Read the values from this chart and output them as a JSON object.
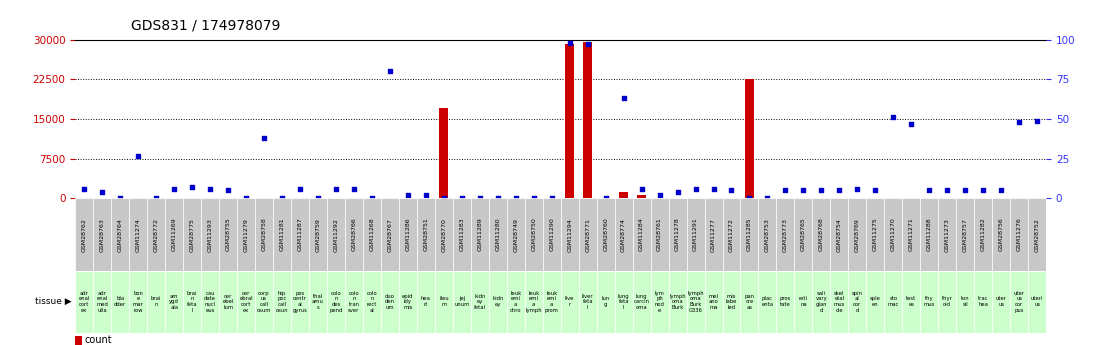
{
  "title": "GDS831 / 174978079",
  "left_ylabel_color": "#cc0000",
  "right_ylabel_color": "#3333ff",
  "ylim_left": [
    0,
    30000
  ],
  "ylim_right": [
    0,
    100
  ],
  "left_ticks": [
    0,
    7500,
    15000,
    22500,
    30000
  ],
  "right_ticks": [
    0,
    25,
    50,
    75,
    100
  ],
  "samples": [
    "GSM28762",
    "GSM28763",
    "GSM28764",
    "GSM11274",
    "GSM28772",
    "GSM11269",
    "GSM28775",
    "GSM11293",
    "GSM28755",
    "GSM11279",
    "GSM28758",
    "GSM11281",
    "GSM11287",
    "GSM28759",
    "GSM11292",
    "GSM28766",
    "GSM11268",
    "GSM28767",
    "GSM11286",
    "GSM28751",
    "GSM28770",
    "GSM11283",
    "GSM11289",
    "GSM11280",
    "GSM28749",
    "GSM28750",
    "GSM11290",
    "GSM11294",
    "GSM28771",
    "GSM28760",
    "GSM28774",
    "GSM11284",
    "GSM28761",
    "GSM11278",
    "GSM11291",
    "GSM11277",
    "GSM11272",
    "GSM11285",
    "GSM28753",
    "GSM28773",
    "GSM28765",
    "GSM28768",
    "GSM28754",
    "GSM28769",
    "GSM11275",
    "GSM11270",
    "GSM11271",
    "GSM11288",
    "GSM11273",
    "GSM28757",
    "GSM11282",
    "GSM28756",
    "GSM11276",
    "GSM28752"
  ],
  "tissues": [
    "adr\nenal\ncort\nex",
    "adr\nenal\nmed\nulla",
    "bla\ndder",
    "bon\ne\nmar\nrow",
    "brai\nn",
    "am\nygd\nala",
    "brai\nn\nfeta\nl",
    "cau\ndate\nnucl\neus",
    "cer\nebel\nlum",
    "cer\nebral\ncort\nex",
    "corp\nus\ncall\nosum",
    "hip\npoc\ncall\nosun",
    "pos\ncentr\nal\ngyrus",
    "thal\namu\ns",
    "colo\nn\ndes\npend",
    "colo\nn\ntran\nsver",
    "colo\nn\nrect\nal",
    "duo\nden\num",
    "epid\nidy\nmis",
    "hea\nrt",
    "ileu\nm",
    "jej\nunum",
    "kidn\ney\nfetal",
    "kidn\ney",
    "leuk\nemi\na\nchro",
    "leuk\nemi\na\nlymph",
    "leuk\nemi\na\nprom",
    "live\nr",
    "liver\nfeta\nl",
    "lun\ng",
    "lung\nfeta\nl",
    "lung\ncarcin\noma",
    "lym\nph\nnod\ne",
    "lymph\noma\nBurk",
    "lymph\noma\nBurk\nG336",
    "mel\nano\nma",
    "mis\nlabe\nled",
    "pan\ncre\nas",
    "plac\nenta",
    "pros\ntate",
    "reti\nna",
    "sali\nvary\nglan\nd",
    "skel\netal\nmus\ncle",
    "spin\nal\ncor\nd",
    "sple\nen",
    "sto\nmac",
    "test\nes",
    "thy\nmus",
    "thyr\noid",
    "ton\nsil",
    "trac\nhea",
    "uter\nus",
    "uter\nus\ncor\npus",
    "uteri\nus"
  ],
  "count_values": [
    50,
    50,
    50,
    50,
    50,
    50,
    50,
    50,
    50,
    50,
    50,
    50,
    50,
    50,
    50,
    50,
    50,
    150,
    50,
    50,
    17000,
    50,
    50,
    50,
    50,
    50,
    50,
    29200,
    29500,
    50,
    1200,
    700,
    50,
    50,
    50,
    50,
    50,
    22500,
    50,
    50,
    50,
    50,
    50,
    50,
    50,
    50,
    50,
    50,
    50,
    50,
    50,
    50,
    50,
    50
  ],
  "percentile_values": [
    6,
    4,
    0,
    27,
    0,
    6,
    7,
    6,
    5,
    0,
    38,
    0,
    6,
    0,
    6,
    6,
    0,
    80,
    2,
    2,
    0,
    0,
    0,
    0,
    0,
    0,
    0,
    98,
    97,
    0,
    63,
    6,
    2,
    4,
    6,
    6,
    5,
    0,
    0,
    5,
    5,
    5,
    5,
    6,
    5,
    51,
    47,
    5,
    5,
    5,
    5,
    5,
    48,
    49
  ],
  "bar_color": "#cc0000",
  "dot_color": "#0000cc",
  "grid_color": "#000000",
  "label_bg_green": "#ccffcc",
  "label_bg_gray": "#c8c8c8",
  "legend_count_color": "#cc0000",
  "legend_pct_color": "#0000cc"
}
